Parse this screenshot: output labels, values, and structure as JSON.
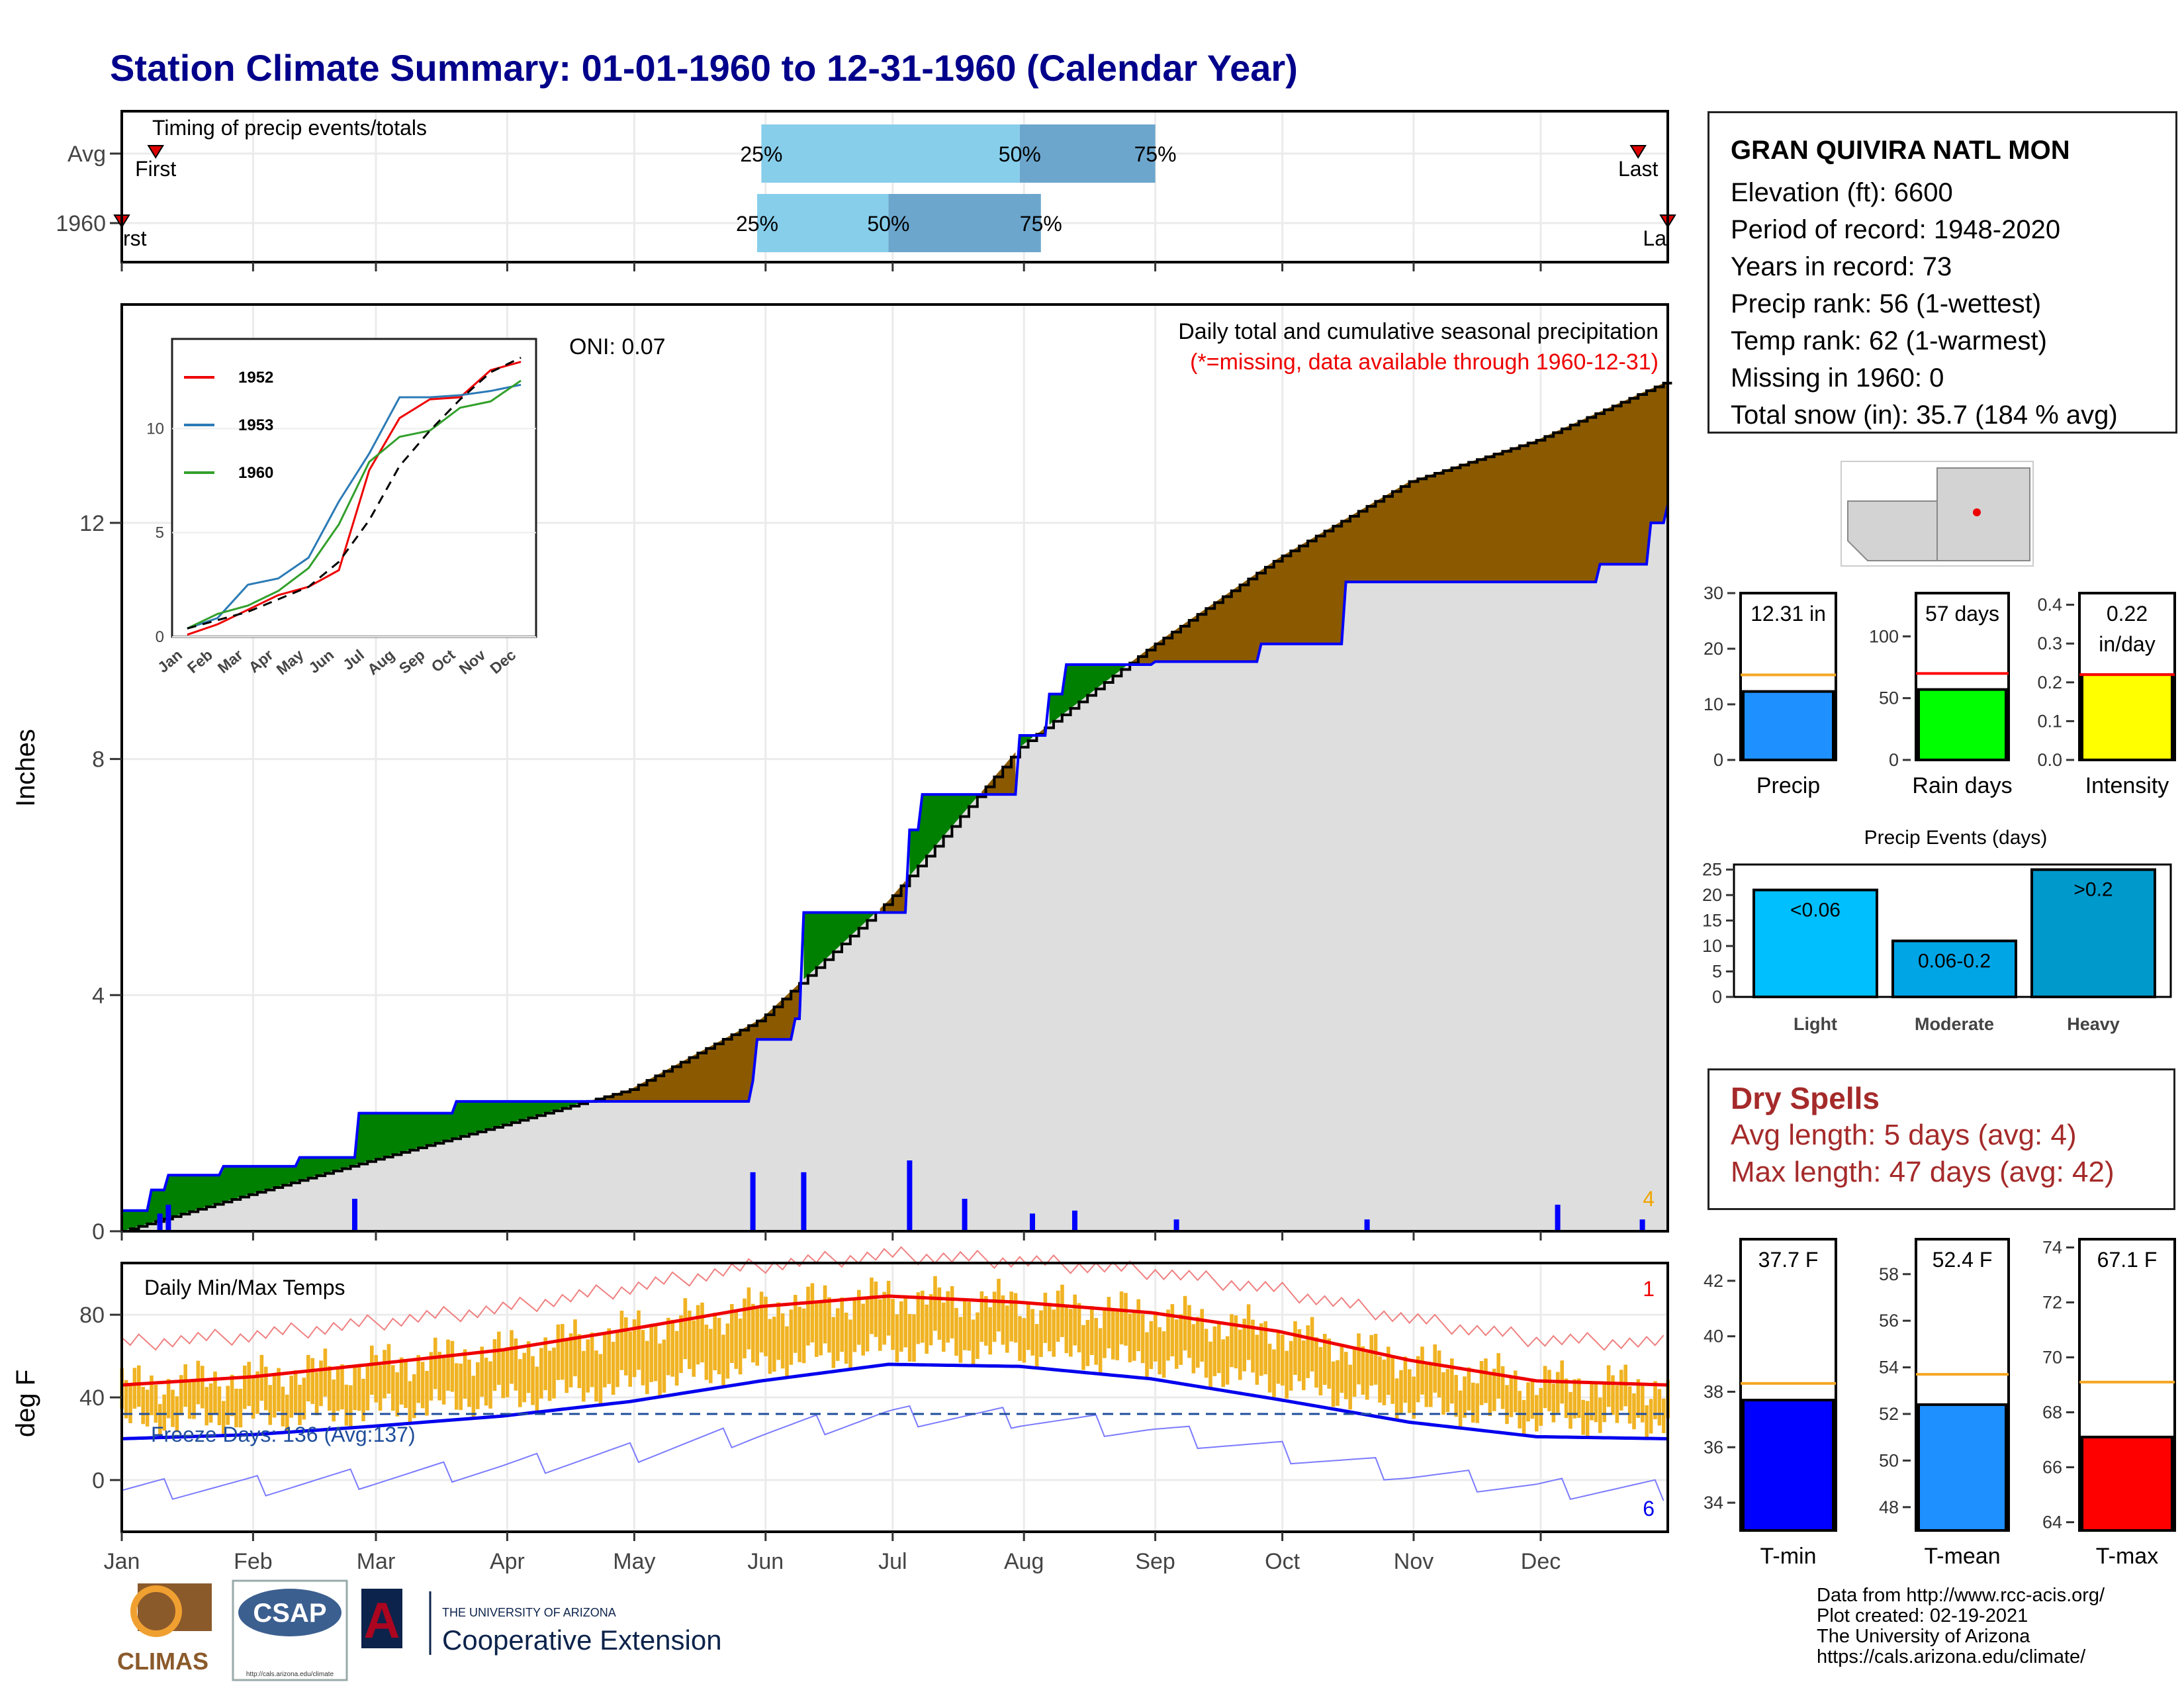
{
  "title": "Station Climate Summary: 01-01-1960 to 12-31-1960 (Calendar Year)",
  "timing": {
    "label": "Timing of precip events/totals",
    "rows": [
      "Avg",
      "1960"
    ],
    "first_label": "First",
    "last_label": "Last",
    "first_label_clipped": "rst",
    "last_label_clipped": "La",
    "pct_labels": [
      "25%",
      "50%",
      "75%"
    ]
  },
  "precip_panel": {
    "ylabel": "Inches",
    "title": "Daily total and cumulative seasonal precipitation",
    "subtitle": "(*=missing, data available through 1960-12-31)",
    "oni": "ONI: 0.07",
    "corner_count": "4",
    "yticks": [
      "0",
      "4",
      "8",
      "12"
    ]
  },
  "temp_panel": {
    "ylabel": "deg F",
    "title": "Daily Min/Max Temps",
    "freeze": "Freeze Days: 136 (Avg:137)",
    "count_top": "1",
    "count_bottom": "6",
    "yticks": [
      "0",
      "40",
      "80"
    ],
    "months": [
      "Jan",
      "Feb",
      "Mar",
      "Apr",
      "May",
      "Jun",
      "Jul",
      "Aug",
      "Sep",
      "Oct",
      "Nov",
      "Dec"
    ]
  },
  "station": {
    "name": "GRAN QUIVIRA NATL MON",
    "lines": [
      "Elevation (ft): 6600",
      "Period of record: 1948-2020",
      "Years in record: 73",
      "Precip rank: 56 (1-wettest)",
      "Temp rank: 62 (1-warmest)",
      "Missing in 1960: 0",
      "Total snow (in): 35.7 (184 % avg)"
    ]
  },
  "dry_spells": {
    "title": "Dry Spells",
    "avg": "Avg length: 5 days (avg: 4)",
    "max": "Max length: 47 days (avg: 42)"
  },
  "credits": [
    "Data from http://www.rcc-acis.org/",
    "Plot created: 02-19-2021",
    "The University of Arizona",
    "https://cals.arizona.edu/climate/"
  ],
  "logos": {
    "climas": "CLIMAS",
    "csap": "CSAP",
    "csap_url": "http://cals.arizona.edu/climate",
    "ua_small": "THE UNIVERSITY OF ARIZONA",
    "ua_big": "Cooperative Extension",
    "ua_letter": "A"
  },
  "colors": {
    "navy": "#00008B",
    "green": "#008000",
    "brown": "#8B5A00",
    "gray_fill": "#DEDEDE",
    "blue": "#0000FF",
    "orange_bar": "#F0B323",
    "light_blue": "#87CEEB",
    "mid_blue": "#6CA6CD",
    "precip_blue": "#1E90FF",
    "rain_green": "#00FF00",
    "intensity_yellow": "#FFFF00",
    "tmean_blue": "#1E90FF",
    "tmax_red": "#FF0000",
    "tmin_blue": "#0000FF",
    "dry_red": "#A52A2A"
  },
  "chart_data": [
    {
      "id": "timing",
      "type": "bar",
      "title": "Timing of precip events/totals",
      "series": [
        {
          "name": "Avg",
          "pct25_date": "05-31",
          "pct50_date": "07-31",
          "pct75_date": "09-01",
          "first": "01-09",
          "last": "12-24"
        },
        {
          "name": "1960",
          "pct25_date": "05-30",
          "pct50_date": "06-30",
          "pct75_date": "08-05",
          "first": "01-01",
          "last": "12-31"
        }
      ]
    },
    {
      "id": "cumulative-precip",
      "type": "area",
      "title": "Daily total and cumulative seasonal precipitation",
      "ylabel": "Inches",
      "ylim": [
        0,
        15.7
      ],
      "x_units": "day of year",
      "cumulative_avg": {
        "x": [
          1,
          30,
          60,
          91,
          121,
          152,
          182,
          213,
          244,
          274,
          305,
          335,
          366
        ],
        "y": [
          0,
          0.6,
          1.2,
          1.8,
          2.4,
          3.6,
          5.6,
          8.2,
          9.9,
          11.4,
          12.7,
          13.4,
          14.4
        ]
      },
      "cumulative_1960": {
        "x": [
          1,
          8,
          12,
          25,
          43,
          57,
          80,
          110,
          150,
          151,
          160,
          162,
          182,
          187,
          190,
          213,
          220,
          224,
          245,
          252,
          257,
          270,
          290,
          350,
          362,
          366
        ],
        "y": [
          0.35,
          0.7,
          0.95,
          1.1,
          1.25,
          2.0,
          2.2,
          2.2,
          2.55,
          3.25,
          3.6,
          5.4,
          5.4,
          6.8,
          7.4,
          8.4,
          9.1,
          9.6,
          9.65,
          9.65,
          9.65,
          9.95,
          11.0,
          11.3,
          12.0,
          12.31
        ]
      },
      "daily_spikes": {
        "x": [
          10,
          12,
          56,
          150,
          162,
          187,
          200,
          216,
          226,
          250,
          295,
          340,
          360
        ],
        "y": [
          0.3,
          0.45,
          0.55,
          1.0,
          1.0,
          1.2,
          0.55,
          0.3,
          0.35,
          0.2,
          0.2,
          0.45,
          0.2
        ]
      },
      "oni": 0.07
    },
    {
      "id": "inset-cumulative",
      "type": "line",
      "xlabel": "",
      "ylabel": "",
      "ylim": [
        0,
        14.3
      ],
      "categories": [
        "Jan",
        "Feb",
        "Mar",
        "Apr",
        "May",
        "Jun",
        "Jul",
        "Aug",
        "Sep",
        "Oct",
        "Nov",
        "Dec"
      ],
      "series": [
        {
          "name": "1952",
          "values": [
            0.1,
            0.6,
            1.3,
            2.0,
            2.4,
            3.2,
            8.0,
            10.5,
            11.4,
            11.5,
            12.8,
            13.2
          ]
        },
        {
          "name": "1953",
          "values": [
            0.4,
            0.9,
            2.5,
            2.8,
            3.8,
            6.5,
            8.8,
            11.5,
            11.5,
            11.6,
            11.8,
            12.1
          ]
        },
        {
          "name": "1960",
          "values": [
            0.4,
            1.1,
            1.5,
            2.2,
            3.3,
            5.4,
            8.4,
            9.6,
            9.9,
            11.0,
            11.3,
            12.3
          ]
        },
        {
          "values": [
            0.4,
            0.8,
            1.2,
            1.8,
            2.4,
            3.6,
            5.6,
            8.2,
            9.9,
            11.4,
            12.7,
            13.4
          ]
        }
      ]
    },
    {
      "id": "precip-total",
      "type": "bar",
      "categories": [
        "Precip"
      ],
      "values": [
        12.31
      ],
      "avg": 15.3,
      "ylim": [
        0,
        30
      ],
      "label": "12.31 in"
    },
    {
      "id": "rain-days",
      "type": "bar",
      "categories": [
        "Rain days"
      ],
      "values": [
        57
      ],
      "avg": 70,
      "ylim": [
        0,
        135
      ],
      "label": "57 days"
    },
    {
      "id": "intensity",
      "type": "bar",
      "categories": [
        "Intensity"
      ],
      "values": [
        0.22
      ],
      "avg": 0.22,
      "ylim": [
        0,
        0.43
      ],
      "label": "0.22 in/day"
    },
    {
      "id": "precip-events",
      "type": "bar",
      "title": "Precip Events (days)",
      "categories": [
        "Light",
        "Moderate",
        "Heavy"
      ],
      "bar_labels": [
        "<0.06",
        "0.06-0.2",
        ">0.2"
      ],
      "values": [
        21,
        11,
        25
      ],
      "ylim": [
        0,
        26
      ]
    },
    {
      "id": "daily-temps",
      "type": "bar",
      "title": "Daily Min/Max Temps",
      "ylabel": "deg F",
      "ylim": [
        -25,
        105
      ],
      "avg_max": {
        "x": [
          1,
          32,
          60,
          91,
          121,
          152,
          182,
          213,
          244,
          274,
          305,
          335,
          366
        ],
        "y": [
          46,
          50,
          56,
          63,
          73,
          84,
          89,
          86,
          81,
          72,
          58,
          48,
          46
        ]
      },
      "avg_min": {
        "x": [
          1,
          32,
          60,
          91,
          121,
          152,
          182,
          213,
          244,
          274,
          305,
          335,
          366
        ],
        "y": [
          20,
          22,
          26,
          31,
          38,
          48,
          56,
          55,
          49,
          39,
          28,
          21,
          20
        ]
      },
      "freeze_line": 32,
      "freeze_days": 136,
      "freeze_days_avg": 137
    },
    {
      "id": "t-min",
      "type": "bar",
      "categories": [
        "T-min"
      ],
      "values": [
        37.7
      ],
      "avg": 38.3,
      "ylim": [
        33,
        43.5
      ],
      "label": "37.7 F"
    },
    {
      "id": "t-mean",
      "type": "bar",
      "categories": [
        "T-mean"
      ],
      "values": [
        52.4
      ],
      "avg": 53.7,
      "ylim": [
        47,
        59.5
      ],
      "label": "52.4 F"
    },
    {
      "id": "t-max",
      "type": "bar",
      "categories": [
        "T-max"
      ],
      "values": [
        67.1
      ],
      "avg": 69.1,
      "ylim": [
        63.7,
        74.3
      ],
      "label": "67.1 F"
    }
  ]
}
